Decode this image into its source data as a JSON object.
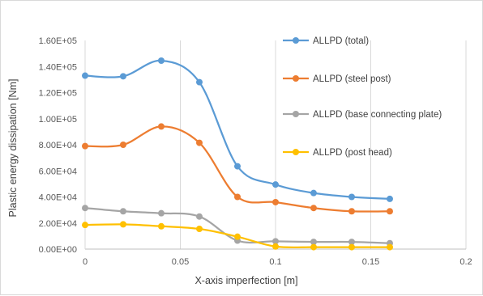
{
  "chart_data": {
    "type": "line",
    "title": "",
    "xlabel": "X-axis imperfection [m]",
    "ylabel": "Plastic energy dissipation [Nm]",
    "xlim": [
      0,
      0.2
    ],
    "ylim": [
      0,
      160000
    ],
    "x_ticks": [
      0,
      0.05,
      0.1,
      0.15,
      0.2
    ],
    "x_tick_labels": [
      "0",
      "0.05",
      "0.1",
      "0.15",
      "0.2"
    ],
    "y_ticks": [
      0,
      20000,
      40000,
      60000,
      80000,
      100000,
      120000,
      140000,
      160000
    ],
    "y_tick_labels": [
      "0.00E+00",
      "2.00E+04",
      "4.00E+04",
      "6.00E+04",
      "8.00E+04",
      "1.00E+05",
      "1.20E+05",
      "1.40E+05",
      "1.60E+05"
    ],
    "grid": "vertical",
    "legend_position": "right",
    "smooth": true,
    "x": [
      0,
      0.02,
      0.04,
      0.06,
      0.08,
      0.1,
      0.12,
      0.14,
      0.16
    ],
    "series": [
      {
        "name": "ALLPD (total)",
        "color": "#5b9bd5",
        "values": [
          133000,
          132500,
          144500,
          128000,
          63500,
          49500,
          43000,
          40000,
          38500
        ]
      },
      {
        "name": "ALLPD (steel post)",
        "color": "#ed7d31",
        "values": [
          79000,
          80000,
          94000,
          81500,
          40000,
          36000,
          31500,
          29000,
          29000
        ]
      },
      {
        "name": "ALLPD (base connecting plate)",
        "color": "#a5a5a5",
        "values": [
          31500,
          29000,
          27500,
          25000,
          6500,
          6000,
          5500,
          5500,
          4500
        ]
      },
      {
        "name": "ALLPD (post head)",
        "color": "#ffc000",
        "values": [
          18500,
          19000,
          17500,
          15500,
          9500,
          2000,
          1500,
          1500,
          1500
        ]
      }
    ]
  }
}
